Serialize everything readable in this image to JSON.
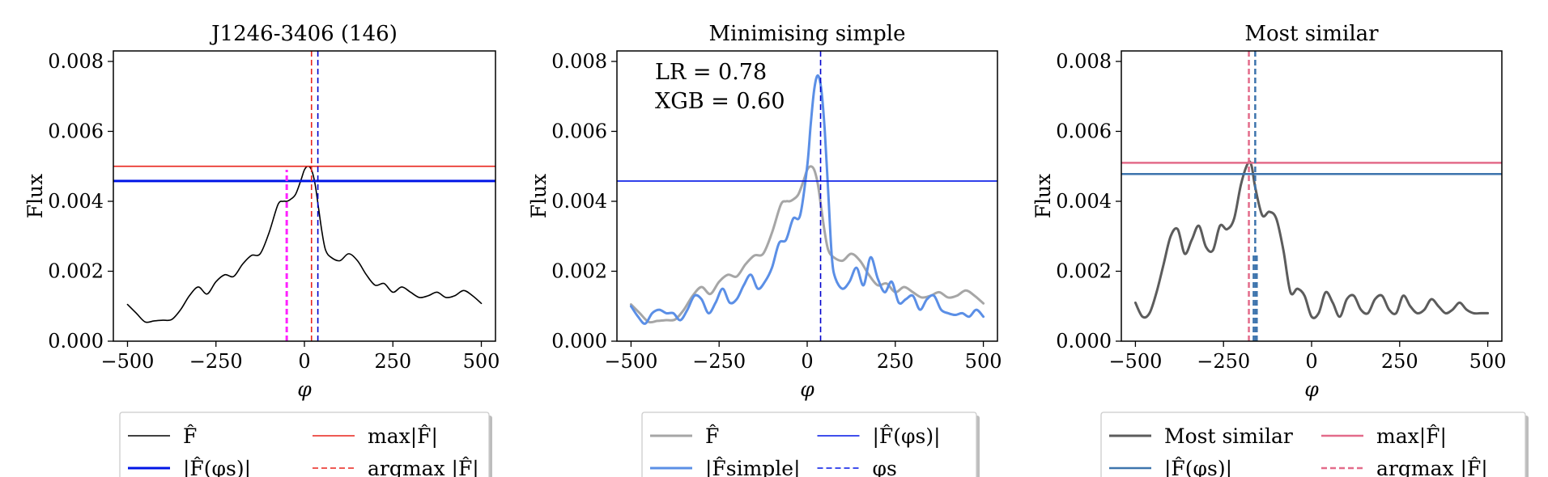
{
  "chart_data": [
    {
      "type": "line",
      "title": "J1246-3406 (146)",
      "xlabel": "φ",
      "ylabel": "Flux",
      "xlim": [
        -540,
        540
      ],
      "ylim": [
        0,
        0.0083
      ],
      "xticks": [
        -500,
        -250,
        0,
        250,
        500
      ],
      "xtick_labels": [
        "−500",
        "−250",
        "0",
        "250",
        "500"
      ],
      "yticks": [
        0,
        0.002,
        0.004,
        0.006,
        0.008
      ],
      "ytick_labels": [
        "0.000",
        "0.002",
        "0.004",
        "0.006",
        "0.008"
      ],
      "series": [
        {
          "name": "F̂",
          "color": "#000000",
          "width": 1.6,
          "x": [
            -500,
            -475,
            -450,
            -425,
            -400,
            -375,
            -350,
            -325,
            -300,
            -275,
            -250,
            -225,
            -200,
            -175,
            -150,
            -125,
            -100,
            -75,
            -60,
            -50,
            -40,
            -25,
            -10,
            0,
            10,
            20,
            30,
            40,
            50,
            60,
            75,
            100,
            125,
            150,
            175,
            200,
            225,
            250,
            275,
            300,
            325,
            350,
            375,
            400,
            425,
            450,
            475,
            500
          ],
          "y": [
            0.00105,
            0.0008,
            0.00055,
            0.00058,
            0.0006,
            0.00062,
            0.0009,
            0.0013,
            0.00155,
            0.00135,
            0.0017,
            0.0019,
            0.00185,
            0.0022,
            0.00245,
            0.0025,
            0.0031,
            0.0039,
            0.004,
            0.004,
            0.00405,
            0.0042,
            0.0046,
            0.0049,
            0.005,
            0.0049,
            0.0045,
            0.0038,
            0.0031,
            0.0026,
            0.0024,
            0.0023,
            0.0025,
            0.0023,
            0.0019,
            0.0016,
            0.00165,
            0.0014,
            0.00155,
            0.0014,
            0.00125,
            0.0013,
            0.0014,
            0.00125,
            0.0013,
            0.00145,
            0.0013,
            0.00108
          ]
        }
      ],
      "hlines": [
        {
          "name": "max|F̂|",
          "y": 0.005,
          "color": "#e8241c",
          "style": "solid",
          "width": 1.6
        },
        {
          "name": "|F̂(φs)|",
          "y": 0.00458,
          "color": "#0015e6",
          "style": "solid",
          "width": 3
        }
      ],
      "vlines": [
        {
          "name": "argmax |F̂|",
          "x": 20,
          "color": "#e8241c",
          "style": "dashed",
          "ymax": 0.0083
        },
        {
          "x": 38,
          "color": "#0000cc",
          "style": "dashed",
          "ymax": 0.0083
        },
        {
          "x": -50,
          "color": "#ff22ff",
          "style": "dashed",
          "ymax": 0.0049,
          "width": 3
        }
      ],
      "legend": {
        "entries": [
          {
            "label": "F̂",
            "color": "#000000",
            "style": "solid",
            "width": 1.6
          },
          {
            "label": "max|F̂|",
            "color": "#e8241c",
            "style": "solid",
            "width": 1.6
          },
          {
            "label": "|F̂(φs)|",
            "color": "#0015e6",
            "style": "solid",
            "width": 3
          },
          {
            "label": "argmax |F̂|",
            "color": "#e8241c",
            "style": "dashed",
            "width": 1.6
          }
        ]
      }
    },
    {
      "type": "line",
      "title": "Minimising simple",
      "xlabel": "φ",
      "ylabel": "Flux",
      "xlim": [
        -540,
        540
      ],
      "ylim": [
        0,
        0.0083
      ],
      "xticks": [
        -500,
        -250,
        0,
        250,
        500
      ],
      "xtick_labels": [
        "−500",
        "−250",
        "0",
        "250",
        "500"
      ],
      "yticks": [
        0,
        0.002,
        0.004,
        0.006,
        0.008
      ],
      "ytick_labels": [
        "0.000",
        "0.002",
        "0.004",
        "0.006",
        "0.008"
      ],
      "annotations": [
        "LR = 0.78",
        "XGB = 0.60"
      ],
      "series": [
        {
          "name": "F̂",
          "color": "#a6a6a6",
          "width": 3,
          "x": [
            -500,
            -475,
            -450,
            -425,
            -400,
            -375,
            -350,
            -325,
            -300,
            -275,
            -250,
            -225,
            -200,
            -175,
            -150,
            -125,
            -100,
            -75,
            -60,
            -50,
            -40,
            -25,
            -10,
            0,
            10,
            20,
            30,
            40,
            50,
            60,
            75,
            100,
            125,
            150,
            175,
            200,
            225,
            250,
            275,
            300,
            325,
            350,
            375,
            400,
            425,
            450,
            475,
            500
          ],
          "y": [
            0.00105,
            0.0008,
            0.00055,
            0.00058,
            0.0006,
            0.00062,
            0.0009,
            0.0013,
            0.00155,
            0.00135,
            0.0017,
            0.0019,
            0.00185,
            0.0022,
            0.00245,
            0.0025,
            0.0031,
            0.0039,
            0.004,
            0.004,
            0.00405,
            0.0042,
            0.0046,
            0.0049,
            0.005,
            0.0049,
            0.0045,
            0.0038,
            0.0031,
            0.0026,
            0.0024,
            0.0023,
            0.0025,
            0.0023,
            0.0019,
            0.0016,
            0.00165,
            0.0014,
            0.00155,
            0.0014,
            0.00125,
            0.0013,
            0.0014,
            0.00125,
            0.0013,
            0.00145,
            0.0013,
            0.00108
          ]
        },
        {
          "name": "|F̂simple|",
          "color": "#5b8fe6",
          "width": 3,
          "x": [
            -500,
            -480,
            -460,
            -440,
            -420,
            -400,
            -380,
            -360,
            -340,
            -320,
            -300,
            -280,
            -260,
            -240,
            -220,
            -200,
            -180,
            -160,
            -140,
            -120,
            -100,
            -80,
            -60,
            -40,
            -20,
            0,
            10,
            20,
            30,
            40,
            50,
            60,
            70,
            80,
            100,
            120,
            140,
            160,
            180,
            200,
            220,
            240,
            260,
            280,
            300,
            320,
            340,
            360,
            380,
            400,
            420,
            440,
            460,
            480,
            500
          ],
          "y": [
            0.001,
            0.0007,
            0.0005,
            0.0008,
            0.0009,
            0.0008,
            0.0008,
            0.0006,
            0.0009,
            0.0013,
            0.0012,
            0.0008,
            0.0011,
            0.0015,
            0.0011,
            0.0012,
            0.0016,
            0.0019,
            0.0015,
            0.0017,
            0.0021,
            0.0028,
            0.0029,
            0.0035,
            0.0036,
            0.005,
            0.0062,
            0.0072,
            0.0076,
            0.0072,
            0.006,
            0.0042,
            0.0024,
            0.0018,
            0.0015,
            0.0017,
            0.0021,
            0.0016,
            0.0024,
            0.0018,
            0.0014,
            0.0017,
            0.0011,
            0.0012,
            0.0013,
            0.0009,
            0.0012,
            0.0013,
            0.0009,
            0.0008,
            0.00075,
            0.0008,
            0.0007,
            0.0009,
            0.0007
          ]
        }
      ],
      "hlines": [
        {
          "name": "|F̂(φs)|",
          "y": 0.00458,
          "color": "#0015e6",
          "style": "solid",
          "width": 1.6
        }
      ],
      "vlines": [
        {
          "name": "φs",
          "x": 38,
          "color": "#0000cc",
          "style": "dashed",
          "ymax": 0.0083
        }
      ],
      "legend": {
        "entries": [
          {
            "label": "F̂",
            "color": "#a6a6a6",
            "style": "solid",
            "width": 3
          },
          {
            "label": "|F̂(φs)|",
            "color": "#0015e6",
            "style": "solid",
            "width": 1.6
          },
          {
            "label": "|F̂simple|",
            "color": "#5b8fe6",
            "style": "solid",
            "width": 3
          },
          {
            "label": "φs",
            "color": "#0015e6",
            "style": "dashed",
            "width": 1.6
          }
        ]
      }
    },
    {
      "type": "line",
      "title": "Most similar",
      "xlabel": "φ",
      "ylabel": "Flux",
      "xlim": [
        -540,
        540
      ],
      "ylim": [
        0,
        0.0083
      ],
      "xticks": [
        -500,
        -250,
        0,
        250,
        500
      ],
      "xtick_labels": [
        "−500",
        "−250",
        "0",
        "250",
        "500"
      ],
      "yticks": [
        0,
        0.002,
        0.004,
        0.006,
        0.008
      ],
      "ytick_labels": [
        "0.000",
        "0.002",
        "0.004",
        "0.006",
        "0.008"
      ],
      "series": [
        {
          "name": "Most similar",
          "color": "#5c5c5c",
          "width": 3,
          "x": [
            -500,
            -480,
            -460,
            -440,
            -420,
            -400,
            -380,
            -360,
            -340,
            -320,
            -300,
            -280,
            -260,
            -240,
            -220,
            -200,
            -180,
            -170,
            -160,
            -140,
            -120,
            -100,
            -80,
            -60,
            -40,
            -20,
            0,
            20,
            40,
            60,
            80,
            100,
            120,
            140,
            160,
            180,
            200,
            220,
            240,
            260,
            280,
            300,
            320,
            340,
            360,
            380,
            400,
            420,
            440,
            460,
            480,
            500
          ],
          "y": [
            0.0011,
            0.0007,
            0.0008,
            0.0014,
            0.0022,
            0.003,
            0.0032,
            0.0025,
            0.0029,
            0.0033,
            0.0027,
            0.0026,
            0.0033,
            0.0032,
            0.0035,
            0.0045,
            0.0051,
            0.005,
            0.0044,
            0.0036,
            0.0037,
            0.0035,
            0.0026,
            0.0014,
            0.0015,
            0.0013,
            0.0007,
            0.0008,
            0.0014,
            0.0011,
            0.0007,
            0.0012,
            0.0013,
            0.0009,
            0.0008,
            0.0012,
            0.0013,
            0.0009,
            0.0008,
            0.0013,
            0.001,
            0.0008,
            0.0009,
            0.0012,
            0.001,
            0.0008,
            0.0009,
            0.0011,
            0.0009,
            0.0008,
            0.0008,
            0.0008
          ]
        }
      ],
      "hlines": [
        {
          "name": "max|F̂|",
          "y": 0.0051,
          "color": "#e36b8a",
          "style": "solid",
          "width": 2.5
        },
        {
          "name": "|F̂(φs)|",
          "y": 0.00478,
          "color": "#3d74ad",
          "style": "solid",
          "width": 2.5
        }
      ],
      "vlines": [
        {
          "name": "argmax |F̂|",
          "x": -178,
          "color": "#e36b8a",
          "style": "dashed",
          "ymax": 0.0083,
          "width": 2.5
        },
        {
          "x": -160,
          "color": "#3d74ad",
          "style": "dashed",
          "ymax": 0.0083,
          "width": 2.5
        },
        {
          "x": -165,
          "color": "#3d74ad",
          "style": "dashed",
          "ymax": 0.0025,
          "width": 2
        },
        {
          "x": -155,
          "color": "#3d74ad",
          "style": "dashed",
          "ymax": 0.0025,
          "width": 2
        }
      ],
      "legend": {
        "entries": [
          {
            "label": "Most similar",
            "color": "#5c5c5c",
            "style": "solid",
            "width": 3
          },
          {
            "label": "max|F̂|",
            "color": "#e36b8a",
            "style": "solid",
            "width": 2.5
          },
          {
            "label": "|F̂(φs)|",
            "color": "#3d74ad",
            "style": "solid",
            "width": 2.5
          },
          {
            "label": "argmax |F̂|",
            "color": "#e36b8a",
            "style": "dashed",
            "width": 2.5
          }
        ]
      }
    }
  ]
}
